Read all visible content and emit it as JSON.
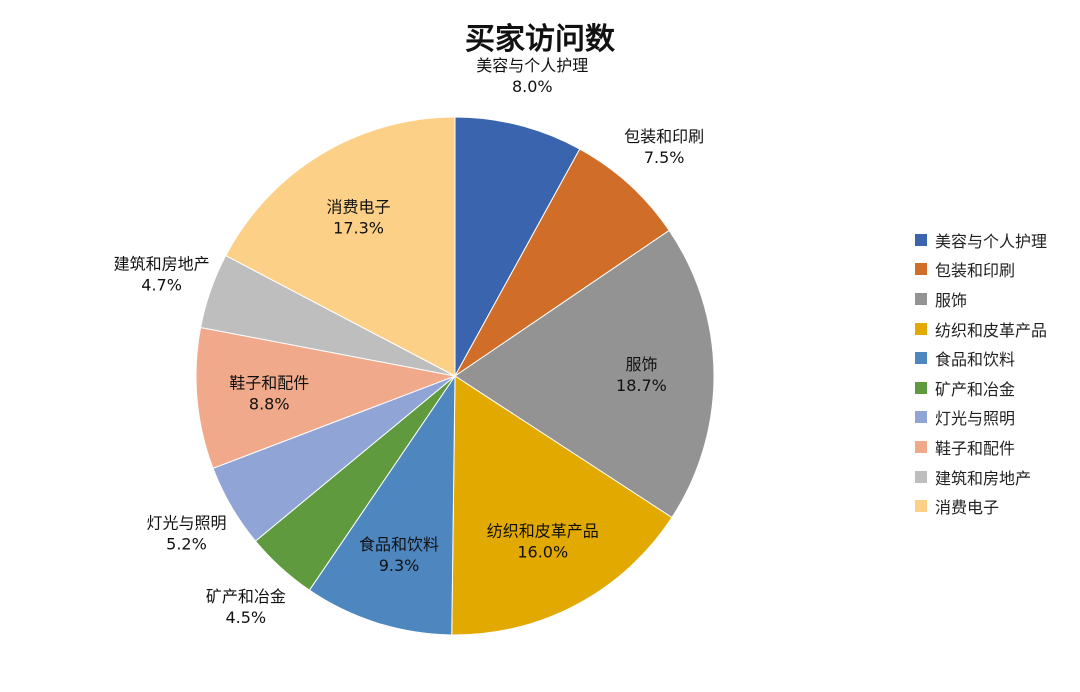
{
  "chart_data": {
    "type": "pie",
    "title": "买家访问数",
    "start": "top",
    "direction": "clockwise",
    "slices": [
      {
        "label": "美容与个人护理",
        "value": 8.0,
        "display": "8.0%",
        "color": "#3A64AE",
        "label_position": "outside"
      },
      {
        "label": "包装和印刷",
        "value": 7.5,
        "display": "7.5%",
        "color": "#D06D28",
        "label_position": "outside"
      },
      {
        "label": "服饰",
        "value": 18.7,
        "display": "18.7%",
        "color": "#939393",
        "label_position": "inside"
      },
      {
        "label": "纺织和皮革产品",
        "value": 16.0,
        "display": "16.0%",
        "color": "#E2A900",
        "label_position": "inside"
      },
      {
        "label": "食品和饮料",
        "value": 9.3,
        "display": "9.3%",
        "color": "#4E86BF",
        "label_position": "inside"
      },
      {
        "label": "矿产和冶金",
        "value": 4.5,
        "display": "4.5%",
        "color": "#5F9B3E",
        "label_position": "outside"
      },
      {
        "label": "灯光与照明",
        "value": 5.2,
        "display": "5.2%",
        "color": "#91A4D6",
        "label_position": "outside"
      },
      {
        "label": "鞋子和配件",
        "value": 8.8,
        "display": "8.8%",
        "color": "#F0A98A",
        "label_position": "inside"
      },
      {
        "label": "建筑和房地产",
        "value": 4.7,
        "display": "4.7%",
        "color": "#BEBEBE",
        "label_position": "outside"
      },
      {
        "label": "消费电子",
        "value": 17.3,
        "display": "17.3%",
        "color": "#FDD087",
        "label_position": "inside"
      }
    ],
    "legend_placement": "right"
  }
}
